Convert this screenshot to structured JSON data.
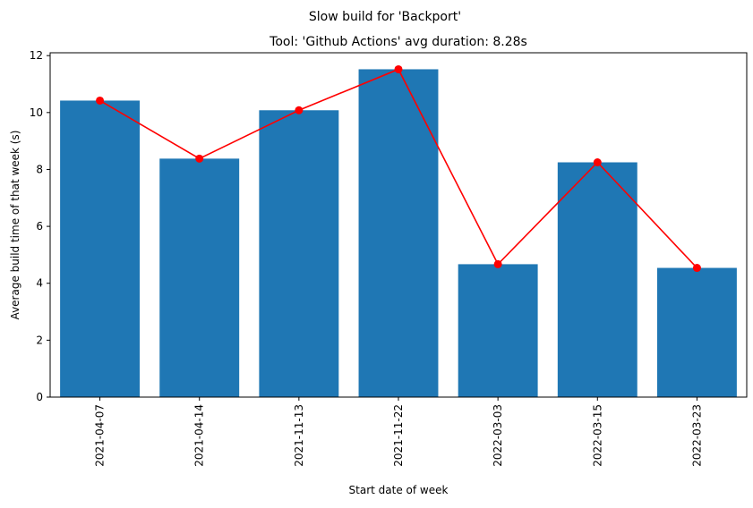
{
  "figure": {
    "suptitle": "Slow build for 'Backport'"
  },
  "chart_data": {
    "type": "bar",
    "title": "Tool: 'Github Actions' avg duration: 8.28s",
    "xlabel": "Start date of week",
    "ylabel": "Average build time of that week (s)",
    "categories": [
      "2021-04-07",
      "2021-04-14",
      "2021-11-13",
      "2021-11-22",
      "2022-03-03",
      "2022-03-15",
      "2022-03-23"
    ],
    "series": [
      {
        "type": "bar",
        "values": [
          10.42,
          8.38,
          10.08,
          11.52,
          4.67,
          8.25,
          4.54
        ],
        "color": "#1f77b4"
      },
      {
        "type": "line",
        "values": [
          10.42,
          8.38,
          10.08,
          11.52,
          4.67,
          8.25,
          4.54
        ],
        "color": "#ff0000",
        "marker": "circle"
      }
    ],
    "ylim": [
      0,
      12.1
    ],
    "yticks": [
      "0",
      "2",
      "4",
      "6",
      "8",
      "10",
      "12"
    ],
    "grid": false,
    "legend": "none"
  }
}
